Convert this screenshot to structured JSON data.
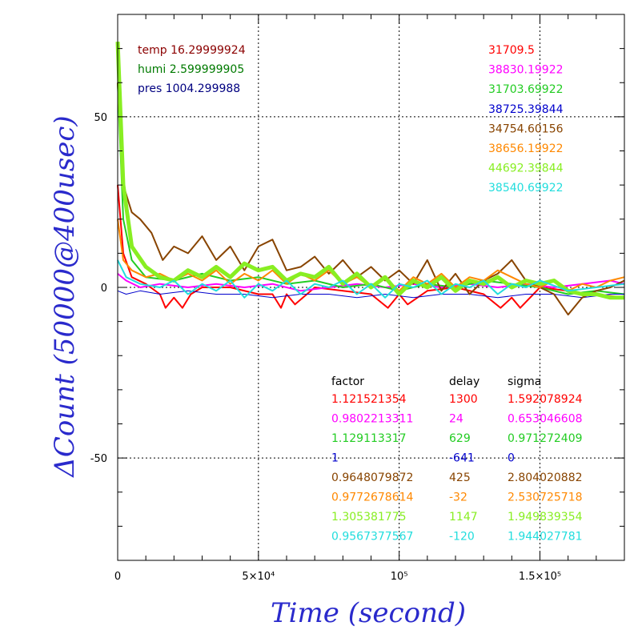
{
  "chart_data": {
    "type": "line",
    "xlabel": "Time (second)",
    "ylabel": "ΔCount (50000@400usec)",
    "xlim": [
      0,
      180000
    ],
    "ylim": [
      -80,
      80
    ],
    "grid": true,
    "x_ticks": [
      {
        "value": 0,
        "label": "0"
      },
      {
        "value": 50000,
        "label": "5×10⁴"
      },
      {
        "value": 100000,
        "label": "10⁵"
      },
      {
        "value": 150000,
        "label": "1.5×10⁵"
      }
    ],
    "y_ticks": [
      {
        "value": 50,
        "label": "50"
      },
      {
        "value": 0,
        "label": "0"
      },
      {
        "value": -50,
        "label": "-50"
      }
    ],
    "env_labels": [
      {
        "text": "temp 16.29999924",
        "color": "#8b0000"
      },
      {
        "text": "humi 2.599999905",
        "color": "#007a00"
      },
      {
        "text": "pres 1004.299988",
        "color": "#000080"
      }
    ],
    "table_headers": {
      "factor": "factor",
      "delay": "delay",
      "sigma": "sigma"
    },
    "series": [
      {
        "mean": "31709.5",
        "factor": "1.121521354",
        "delay": "1300",
        "sigma": "1.592078924",
        "color": "#ff0000",
        "width": 2,
        "x": [
          0,
          2000,
          5000,
          10000,
          15000,
          17000,
          20000,
          23000,
          26000,
          30000,
          40000,
          50000,
          55000,
          58000,
          60000,
          63000,
          70000,
          80000,
          90000,
          96000,
          100000,
          103000,
          110000,
          120000,
          130000,
          136000,
          140000,
          143000,
          150000,
          160000,
          165000,
          170000,
          180000
        ],
        "y": [
          30,
          10,
          3,
          1,
          -2,
          -6,
          -3,
          -6,
          -2,
          0,
          0,
          -2,
          -2,
          -6,
          -2,
          -5,
          0,
          -1,
          -2,
          -6,
          -2,
          -5,
          -1,
          0,
          -2,
          -6,
          -3,
          -6,
          0,
          -1,
          -2,
          -2,
          -3
        ]
      },
      {
        "mean": "38830.19922",
        "factor": "0.9802213311",
        "delay": "24",
        "sigma": "0.653046608",
        "color": "#ff00ff",
        "width": 2,
        "x": [
          0,
          3000,
          8000,
          15000,
          25000,
          35000,
          45000,
          55000,
          65000,
          75000,
          85000,
          95000,
          105000,
          115000,
          125000,
          135000,
          145000,
          155000,
          165000,
          175000,
          180000
        ],
        "y": [
          4,
          2,
          0,
          1,
          0,
          1,
          0,
          1,
          -1,
          0,
          1,
          0,
          1,
          0,
          1,
          0,
          1,
          0,
          1,
          2,
          1
        ]
      },
      {
        "mean": "31703.69922",
        "factor": "1.129113317",
        "delay": "629",
        "sigma": "0.971272409",
        "color": "#22cc22",
        "width": 2,
        "x": [
          0,
          2000,
          5000,
          10000,
          20000,
          30000,
          40000,
          50000,
          60000,
          70000,
          80000,
          90000,
          100000,
          110000,
          120000,
          130000,
          140000,
          150000,
          160000,
          170000,
          180000
        ],
        "y": [
          60,
          20,
          8,
          3,
          2,
          4,
          2,
          3,
          1,
          2,
          0,
          1,
          -1,
          1,
          0,
          2,
          1,
          0,
          -2,
          -1,
          -2
        ]
      },
      {
        "mean": "38725.39844",
        "factor": "1",
        "delay": "-641",
        "sigma": "0",
        "color": "#0000cc",
        "width": 1,
        "x": [
          0,
          3000,
          8000,
          15000,
          25000,
          35000,
          45000,
          55000,
          65000,
          75000,
          85000,
          95000,
          105000,
          115000,
          125000,
          135000,
          145000,
          155000,
          165000,
          175000,
          180000
        ],
        "y": [
          -1,
          -2,
          -1,
          -2,
          -1,
          -2,
          -2,
          -3,
          -2,
          -2,
          -3,
          -2,
          -3,
          -2,
          -2,
          -3,
          -2,
          -2,
          -3,
          -2,
          -2
        ]
      },
      {
        "mean": "34754.60156",
        "factor": "0.9648079872",
        "delay": "425",
        "sigma": "2.804020882",
        "color": "#884400",
        "width": 2,
        "x": [
          0,
          2000,
          5000,
          8000,
          12000,
          16000,
          20000,
          25000,
          30000,
          35000,
          40000,
          45000,
          50000,
          55000,
          60000,
          65000,
          70000,
          75000,
          80000,
          85000,
          90000,
          95000,
          100000,
          105000,
          110000,
          115000,
          120000,
          125000,
          130000,
          135000,
          140000,
          145000,
          150000,
          155000,
          160000,
          165000,
          170000,
          175000,
          180000
        ],
        "y": [
          60,
          30,
          22,
          20,
          16,
          8,
          12,
          10,
          15,
          8,
          12,
          5,
          12,
          14,
          5,
          6,
          9,
          4,
          8,
          3,
          6,
          2,
          5,
          1,
          8,
          -1,
          4,
          -2,
          2,
          4,
          8,
          2,
          0,
          -2,
          -8,
          -3,
          -1,
          0,
          2
        ]
      },
      {
        "mean": "38656.19922",
        "factor": "0.9772678614",
        "delay": "-32",
        "sigma": "2.530725718",
        "color": "#ff8800",
        "width": 2,
        "x": [
          0,
          2000,
          5000,
          10000,
          15000,
          20000,
          25000,
          30000,
          35000,
          40000,
          45000,
          50000,
          55000,
          60000,
          65000,
          70000,
          75000,
          80000,
          85000,
          90000,
          95000,
          100000,
          105000,
          110000,
          115000,
          120000,
          125000,
          130000,
          135000,
          140000,
          145000,
          150000,
          155000,
          160000,
          165000,
          170000,
          175000,
          180000
        ],
        "y": [
          20,
          8,
          5,
          3,
          4,
          2,
          4,
          2,
          5,
          1,
          4,
          2,
          5,
          1,
          4,
          2,
          5,
          1,
          3,
          0,
          3,
          -1,
          3,
          1,
          4,
          0,
          3,
          2,
          5,
          3,
          1,
          0,
          2,
          -1,
          1,
          0,
          2,
          3
        ]
      },
      {
        "mean": "44692.39844",
        "factor": "1.305381775",
        "delay": "1147",
        "sigma": "1.949839354",
        "color": "#88ee22",
        "width": 5,
        "x": [
          0,
          2000,
          5000,
          10000,
          15000,
          20000,
          25000,
          30000,
          35000,
          40000,
          45000,
          50000,
          55000,
          60000,
          65000,
          70000,
          75000,
          80000,
          85000,
          90000,
          95000,
          100000,
          105000,
          110000,
          115000,
          120000,
          125000,
          130000,
          135000,
          140000,
          145000,
          150000,
          155000,
          160000,
          165000,
          170000,
          175000,
          180000
        ],
        "y": [
          72,
          30,
          12,
          6,
          3,
          2,
          5,
          3,
          6,
          3,
          7,
          5,
          6,
          2,
          4,
          3,
          6,
          1,
          4,
          0,
          3,
          -2,
          2,
          0,
          3,
          -1,
          2,
          1,
          3,
          0,
          2,
          1,
          2,
          -1,
          -2,
          -2,
          -3,
          -3
        ]
      },
      {
        "mean": "38540.69922",
        "factor": "0.9567377567",
        "delay": "-120",
        "sigma": "1.944027781",
        "color": "#22dddd",
        "width": 2,
        "x": [
          0,
          3000,
          8000,
          15000,
          20000,
          25000,
          30000,
          35000,
          40000,
          45000,
          50000,
          55000,
          60000,
          65000,
          70000,
          75000,
          80000,
          85000,
          90000,
          95000,
          100000,
          105000,
          110000,
          115000,
          120000,
          125000,
          130000,
          135000,
          140000,
          145000,
          150000,
          160000,
          170000,
          180000
        ],
        "y": [
          8,
          3,
          1,
          0,
          2,
          -2,
          1,
          -1,
          2,
          -3,
          1,
          -1,
          2,
          -2,
          1,
          0,
          2,
          -2,
          1,
          -3,
          1,
          0,
          2,
          -2,
          1,
          0,
          2,
          -2,
          1,
          0,
          2,
          -1,
          0,
          1
        ]
      }
    ]
  }
}
